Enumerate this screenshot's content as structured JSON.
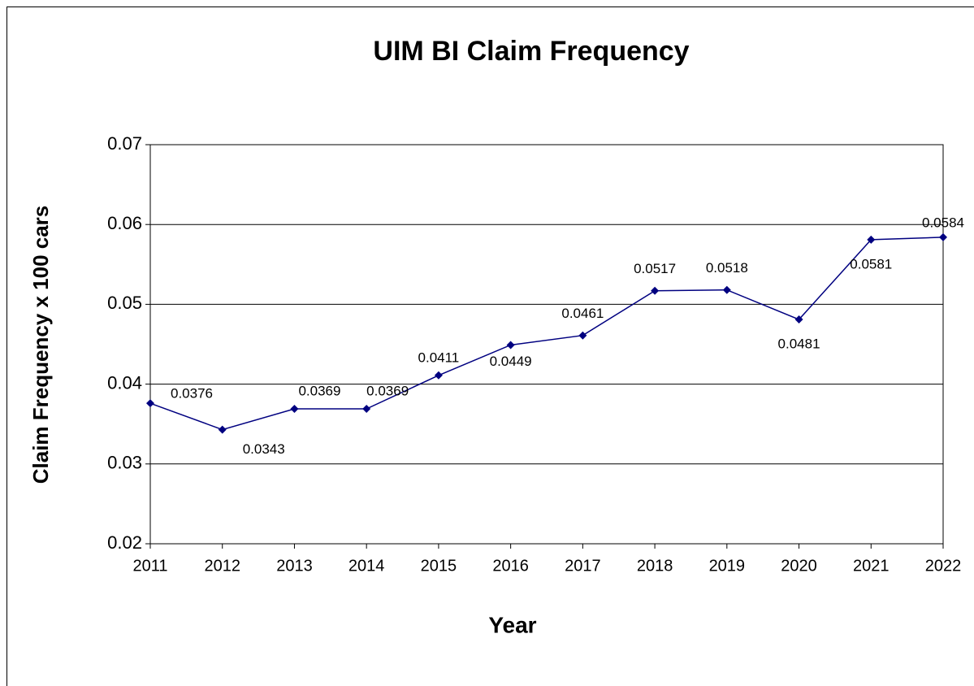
{
  "chart_data": {
    "type": "line",
    "title": "UIM BI Claim Frequency",
    "x_label": "Year",
    "y_label": "Claim Frequency x 100 cars",
    "categories": [
      "2011",
      "2012",
      "2013",
      "2014",
      "2015",
      "2016",
      "2017",
      "2018",
      "2019",
      "2020",
      "2021",
      "2022"
    ],
    "values": [
      0.0376,
      0.0343,
      0.0369,
      0.0369,
      0.0411,
      0.0449,
      0.0461,
      0.0517,
      0.0518,
      0.0481,
      0.0581,
      0.0584
    ],
    "color": "#000080",
    "ylim": [
      0.02,
      0.07
    ],
    "yticks": [
      0.02,
      0.03,
      0.04,
      0.05,
      0.06,
      0.07
    ],
    "grid": true
  }
}
